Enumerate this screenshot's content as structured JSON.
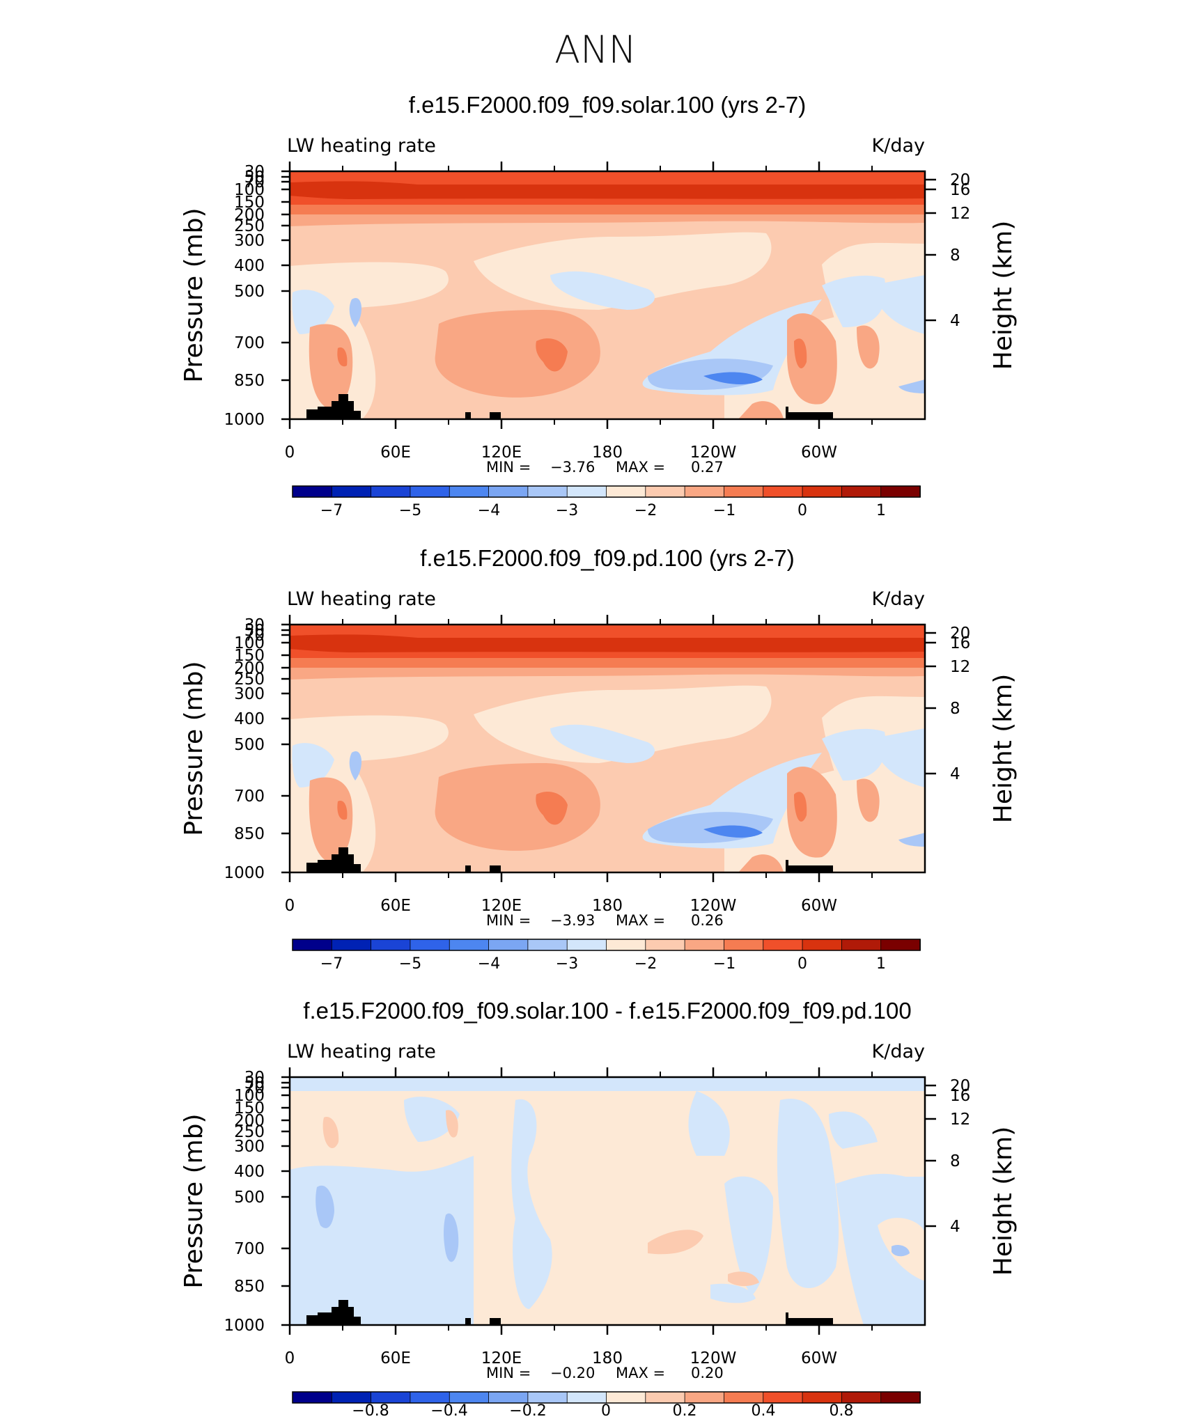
{
  "page_title": "ANN",
  "chart_data": [
    {
      "type": "heatmap",
      "title": "f.e15.F2000.f09_f09.solar.100 (yrs 2-7)",
      "left_label": "LW heating rate",
      "units": "K/day",
      "ylabel": "Pressure (mb)",
      "ylabel2": "Height (km)",
      "x_ticks": [
        "0",
        "60E",
        "120E",
        "180",
        "120W",
        "60W"
      ],
      "y_ticks": [
        "30",
        "50",
        "70",
        "100",
        "150",
        "200",
        "250",
        "300",
        "400",
        "500",
        "700",
        "850",
        "1000"
      ],
      "y2_ticks": [
        "20",
        "16",
        "12",
        "8",
        "4"
      ],
      "xlim": [
        0,
        360
      ],
      "ylim": [
        1000,
        30
      ],
      "min_label": "MIN =",
      "min": "-3.76",
      "max_label": "MAX =",
      "max": "0.27",
      "colorbar_labels": [
        "-7",
        "-5",
        "-4",
        "-3",
        "-2",
        "-1",
        "0",
        "1"
      ],
      "colors": [
        "#00008b",
        "#0022b4",
        "#1a44d6",
        "#2f63e9",
        "#4d86f0",
        "#7ba6f3",
        "#a9c7f7",
        "#d3e6fb",
        "#fde9d6",
        "#fccbb0",
        "#f9a784",
        "#f57c52",
        "#f0502a",
        "#d8330f",
        "#b01a08",
        "#7a0000"
      ]
    },
    {
      "type": "heatmap",
      "title": "f.e15.F2000.f09_f09.pd.100 (yrs 2-7)",
      "left_label": "LW heating rate",
      "units": "K/day",
      "ylabel": "Pressure (mb)",
      "ylabel2": "Height (km)",
      "x_ticks": [
        "0",
        "60E",
        "120E",
        "180",
        "120W",
        "60W"
      ],
      "y_ticks": [
        "30",
        "50",
        "70",
        "100",
        "150",
        "200",
        "250",
        "300",
        "400",
        "500",
        "700",
        "850",
        "1000"
      ],
      "y2_ticks": [
        "20",
        "16",
        "12",
        "8",
        "4"
      ],
      "xlim": [
        0,
        360
      ],
      "ylim": [
        1000,
        30
      ],
      "min_label": "MIN =",
      "min": "-3.93",
      "max_label": "MAX =",
      "max": "0.26",
      "colorbar_labels": [
        "-7",
        "-5",
        "-4",
        "-3",
        "-2",
        "-1",
        "0",
        "1"
      ],
      "colors": [
        "#00008b",
        "#0022b4",
        "#1a44d6",
        "#2f63e9",
        "#4d86f0",
        "#7ba6f3",
        "#a9c7f7",
        "#d3e6fb",
        "#fde9d6",
        "#fccbb0",
        "#f9a784",
        "#f57c52",
        "#f0502a",
        "#d8330f",
        "#b01a08",
        "#7a0000"
      ]
    },
    {
      "type": "heatmap",
      "title": "f.e15.F2000.f09_f09.solar.100 - f.e15.F2000.f09_f09.pd.100",
      "left_label": "LW heating rate",
      "units": "K/day",
      "ylabel": "Pressure (mb)",
      "ylabel2": "Height (km)",
      "x_ticks": [
        "0",
        "60E",
        "120E",
        "180",
        "120W",
        "60W"
      ],
      "y_ticks": [
        "30",
        "50",
        "70",
        "100",
        "150",
        "200",
        "250",
        "300",
        "400",
        "500",
        "700",
        "850",
        "1000"
      ],
      "y2_ticks": [
        "20",
        "16",
        "12",
        "8",
        "4"
      ],
      "xlim": [
        0,
        360
      ],
      "ylim": [
        1000,
        30
      ],
      "min_label": "MIN =",
      "min": "-0.20",
      "max_label": "MAX =",
      "max": "0.20",
      "colorbar_labels": [
        "-0.8",
        "-0.4",
        "-0.2",
        "0",
        "0.2",
        "0.4",
        "0.8"
      ],
      "colors": [
        "#00008b",
        "#0022b4",
        "#1a44d6",
        "#2f63e9",
        "#4d86f0",
        "#7ba6f3",
        "#a9c7f7",
        "#d3e6fb",
        "#fde9d6",
        "#fccbb0",
        "#f9a784",
        "#f57c52",
        "#f0502a",
        "#d8330f",
        "#b01a08",
        "#7a0000"
      ]
    }
  ]
}
